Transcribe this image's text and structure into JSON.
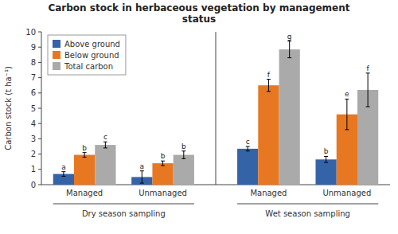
{
  "chart_data": {
    "type": "bar",
    "title": "Carbon stock in herbaceous vegetation by management\nstatus",
    "ylabel": "Carbon stock (t ha⁻¹)",
    "categories": [
      "Managed",
      "Unmanaged",
      "Managed",
      "Unmanaged"
    ],
    "season_labels": [
      "Dry season sampling",
      "Wet season sampling"
    ],
    "series": [
      {
        "name": "Above ground",
        "color": "#3563a8",
        "values": [
          0.7,
          0.5,
          2.35,
          1.65
        ],
        "errors": [
          0.15,
          0.4,
          0.15,
          0.2
        ],
        "sig_letters": [
          "a",
          "a",
          "c",
          "b"
        ]
      },
      {
        "name": "Below ground",
        "color": "#e87722",
        "values": [
          1.95,
          1.4,
          6.5,
          4.6
        ],
        "errors": [
          0.15,
          0.15,
          0.4,
          1.0
        ],
        "sig_letters": [
          "b",
          "b",
          "f",
          "e"
        ]
      },
      {
        "name": "Total carbon",
        "color": "#aaaaaa",
        "values": [
          2.6,
          1.95,
          8.85,
          6.2
        ],
        "errors": [
          0.2,
          0.25,
          0.55,
          1.1
        ],
        "sig_letters": [
          "c",
          "b",
          "g",
          "f"
        ]
      }
    ],
    "ylim": [
      0,
      10
    ],
    "yticks": [
      0,
      1,
      2,
      3,
      4,
      5,
      6,
      7,
      8,
      9,
      10
    ],
    "grid": false,
    "legend": "top-left"
  }
}
